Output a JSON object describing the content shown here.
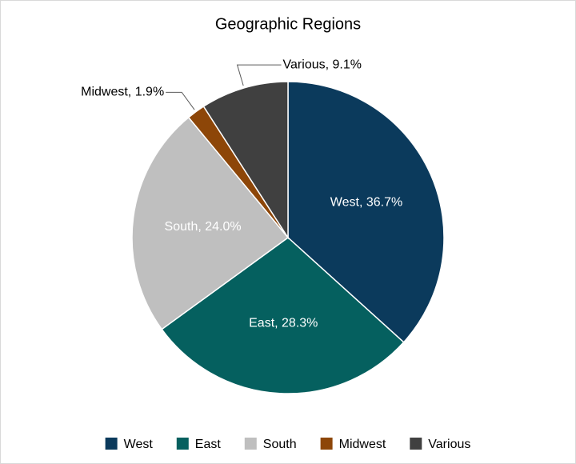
{
  "chart_data": {
    "type": "pie",
    "title": "Geographic Regions",
    "categories": [
      "West",
      "East",
      "South",
      "Midwest",
      "Various"
    ],
    "values": [
      36.7,
      28.3,
      24.0,
      1.9,
      9.1
    ],
    "value_labels": [
      "West, 36.7%",
      "East, 28.3%",
      "South, 24.0%",
      "Midwest, 1.9%",
      "Various, 9.1%"
    ],
    "colors": [
      "#0b3a5c",
      "#05605f",
      "#bfbfbf",
      "#8d4608",
      "#404040"
    ],
    "legend": "bottom"
  }
}
